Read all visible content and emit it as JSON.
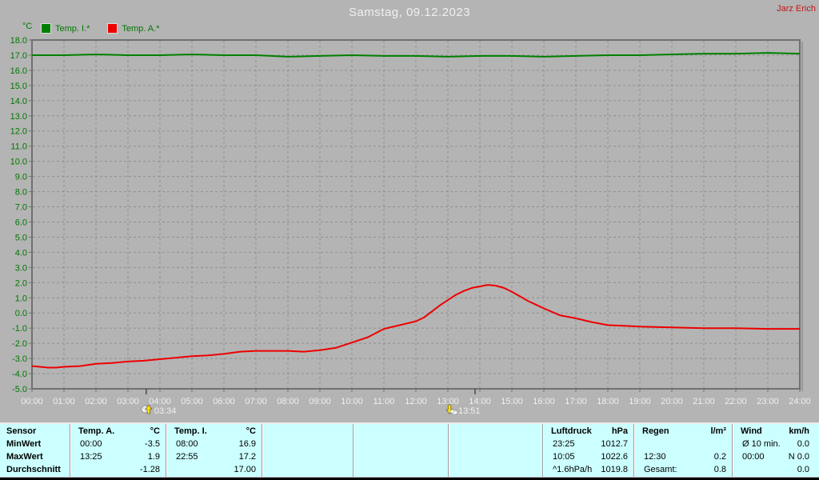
{
  "header": {
    "title": "Samstag, 09.12.2023",
    "user": "Jarz Erich"
  },
  "chart_data": {
    "type": "line",
    "title": "Samstag, 09.12.2023",
    "grid": true,
    "legend_position": "top-left",
    "y_axis": {
      "unit": "°C",
      "min": -5,
      "max": 18,
      "step": 1,
      "tick_labels": [
        "18.0",
        "17.0",
        "16.0",
        "15.0",
        "14.0",
        "13.0",
        "12.0",
        "11.0",
        "10.0",
        "9.0",
        "8.0",
        "7.0",
        "6.0",
        "5.0",
        "4.0",
        "3.0",
        "2.0",
        "1.0",
        "0.0",
        "-1.0",
        "-2.0",
        "-3.0",
        "-4.0",
        "-5.0"
      ]
    },
    "x_axis": {
      "min": 0,
      "max": 24,
      "tick_labels": [
        "00:00",
        "01:00",
        "02:00",
        "03:00",
        "04:00",
        "05:00",
        "06:00",
        "07:00",
        "08:00",
        "09:00",
        "10:00",
        "11:00",
        "12:00",
        "13:00",
        "14:00",
        "15:00",
        "16:00",
        "17:00",
        "18:00",
        "19:00",
        "20:00",
        "21:00",
        "22:00",
        "23:00",
        "24:00"
      ]
    },
    "legend": [
      {
        "label": "Temp. I.*",
        "color": "#008000"
      },
      {
        "label": "Temp. A.*",
        "color": "#ee0000"
      }
    ],
    "series": [
      {
        "name": "Temp. I.*",
        "unit": "°C",
        "color": "#008000",
        "x": [
          0,
          1,
          2,
          3,
          4,
          5,
          6,
          7,
          8,
          9,
          10,
          11,
          12,
          13,
          14,
          15,
          16,
          17,
          18,
          19,
          20,
          21,
          22,
          23,
          24
        ],
        "values": [
          17.0,
          17.0,
          17.05,
          17.0,
          17.0,
          17.05,
          17.0,
          17.0,
          16.9,
          16.95,
          17.0,
          16.95,
          16.95,
          16.9,
          16.95,
          16.95,
          16.9,
          16.95,
          17.0,
          17.0,
          17.05,
          17.1,
          17.1,
          17.15,
          17.1
        ]
      },
      {
        "name": "Temp. A.*",
        "unit": "°C",
        "color": "#ee0000",
        "x": [
          0,
          0.25,
          0.5,
          0.75,
          1,
          1.5,
          2,
          2.5,
          3,
          3.5,
          4,
          4.5,
          5,
          5.5,
          6,
          6.5,
          7,
          7.5,
          8,
          8.5,
          9,
          9.5,
          10,
          10.5,
          11,
          11.5,
          12,
          12.25,
          12.5,
          12.75,
          13,
          13.25,
          13.5,
          13.75,
          14,
          14.25,
          14.5,
          14.75,
          15,
          15.25,
          15.5,
          15.75,
          16,
          16.5,
          17,
          17.5,
          18,
          18.5,
          19,
          20,
          21,
          22,
          23,
          24
        ],
        "values": [
          -3.5,
          -3.55,
          -3.6,
          -3.6,
          -3.55,
          -3.5,
          -3.35,
          -3.3,
          -3.2,
          -3.15,
          -3.05,
          -2.95,
          -2.85,
          -2.8,
          -2.7,
          -2.55,
          -2.5,
          -2.5,
          -2.5,
          -2.55,
          -2.45,
          -2.3,
          -1.95,
          -1.6,
          -1.05,
          -0.8,
          -0.55,
          -0.3,
          0.1,
          0.5,
          0.85,
          1.2,
          1.45,
          1.65,
          1.75,
          1.85,
          1.8,
          1.65,
          1.4,
          1.1,
          0.8,
          0.55,
          0.3,
          -0.15,
          -0.35,
          -0.6,
          -0.8,
          -0.85,
          -0.9,
          -0.95,
          -1.0,
          -1.0,
          -1.05,
          -1.05
        ]
      }
    ],
    "markers": [
      {
        "type": "moonrise",
        "time": "03:34",
        "hour": 3.57
      },
      {
        "type": "moonset",
        "time": "13:51",
        "hour": 13.85
      }
    ]
  },
  "table": {
    "row_labels": [
      "Sensor",
      "MinWert",
      "MaxWert",
      "Durchschnitt"
    ],
    "columns": [
      {
        "name": "Temp. A.",
        "unit": "°C",
        "rows": [
          [
            "00:00",
            "-3.5"
          ],
          [
            "13:25",
            "1.9"
          ],
          [
            "",
            "-1.28"
          ]
        ]
      },
      {
        "name": "Temp. I.",
        "unit": "°C",
        "rows": [
          [
            "08:00",
            "16.9"
          ],
          [
            "22:55",
            "17.2"
          ],
          [
            "",
            "17.00"
          ]
        ]
      },
      {
        "name": "",
        "unit": "",
        "rows": [
          [
            "",
            ""
          ],
          [
            "",
            ""
          ],
          [
            "",
            ""
          ]
        ]
      },
      {
        "name": "",
        "unit": "",
        "rows": [
          [
            "",
            ""
          ],
          [
            "",
            ""
          ],
          [
            "",
            ""
          ]
        ]
      },
      {
        "name": "",
        "unit": "",
        "rows": [
          [
            "",
            ""
          ],
          [
            "",
            ""
          ],
          [
            "",
            ""
          ]
        ]
      },
      {
        "name": "Luftdruck",
        "unit": "hPa",
        "rows": [
          [
            "23:25",
            "1012.7"
          ],
          [
            "10:05",
            "1022.6"
          ],
          [
            "^1.6hPa/h",
            "1019.8"
          ]
        ]
      },
      {
        "name": "Regen",
        "unit": "l/m²",
        "rows": [
          [
            "",
            ""
          ],
          [
            "12:30",
            "0.2"
          ],
          [
            "Gesamt:",
            "0.8"
          ]
        ]
      },
      {
        "name": "Wind",
        "unit": "km/h",
        "rows": [
          [
            "Ø 10 min.",
            "0.0"
          ],
          [
            "00:00",
            "N 0.0"
          ],
          [
            "",
            "0.0"
          ]
        ]
      }
    ]
  },
  "colors": {
    "background": "#b4b4b4",
    "plot_border": "#707070",
    "grid": "#8f8f8f",
    "axis_text_green": "#007800",
    "x_axis_text": "#f0f0f0",
    "title_text": "#f0f0f0",
    "user_text": "#c41414",
    "temp_i": "#008000",
    "temp_a": "#ee0000",
    "table_bg": "#ccffff",
    "marker_yellow": "#ffdf00"
  }
}
